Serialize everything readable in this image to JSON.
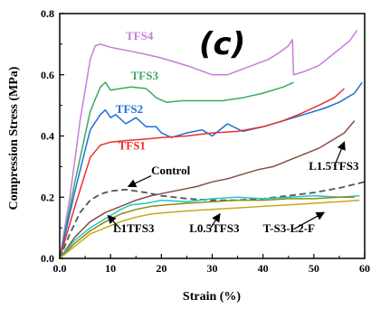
{
  "chart_data": {
    "type": "line",
    "panel_label": "(c)",
    "xlabel": "Strain (%)",
    "ylabel": "Compression Stress (MPa)",
    "xlim": [
      0,
      60
    ],
    "ylim": [
      0,
      0.8
    ],
    "x_ticks": [
      "0.0",
      "10",
      "20",
      "30",
      "40",
      "50",
      "60"
    ],
    "y_ticks": [
      "0.0",
      "0.2",
      "0.4",
      "0.6",
      "0.8"
    ],
    "grid": false,
    "legend": "none (series labelled directly on curves)",
    "series": [
      {
        "name": "TFS4",
        "color": "#c77dd8",
        "dash": false,
        "points": [
          [
            0,
            0
          ],
          [
            2,
            0.2
          ],
          [
            4,
            0.45
          ],
          [
            6,
            0.65
          ],
          [
            7,
            0.695
          ],
          [
            8,
            0.7
          ],
          [
            10,
            0.69
          ],
          [
            13,
            0.68
          ],
          [
            16,
            0.67
          ],
          [
            20,
            0.655
          ],
          [
            25,
            0.63
          ],
          [
            30,
            0.6
          ],
          [
            33,
            0.6
          ],
          [
            37,
            0.625
          ],
          [
            41,
            0.65
          ],
          [
            43,
            0.67
          ],
          [
            45,
            0.695
          ],
          [
            45.8,
            0.715
          ],
          [
            46,
            0.6
          ],
          [
            48,
            0.61
          ],
          [
            51,
            0.63
          ],
          [
            54,
            0.67
          ],
          [
            57,
            0.71
          ],
          [
            58.5,
            0.745
          ]
        ]
      },
      {
        "name": "TFS3",
        "color": "#3aaa5c",
        "dash": false,
        "points": [
          [
            0,
            0
          ],
          [
            3,
            0.25
          ],
          [
            6,
            0.48
          ],
          [
            8,
            0.56
          ],
          [
            9,
            0.575
          ],
          [
            10,
            0.55
          ],
          [
            12,
            0.555
          ],
          [
            14,
            0.56
          ],
          [
            17,
            0.555
          ],
          [
            19,
            0.525
          ],
          [
            21,
            0.51
          ],
          [
            24,
            0.515
          ],
          [
            28,
            0.515
          ],
          [
            32,
            0.515
          ],
          [
            36,
            0.525
          ],
          [
            40,
            0.54
          ],
          [
            44,
            0.56
          ],
          [
            46,
            0.575
          ]
        ]
      },
      {
        "name": "TFS2",
        "color": "#1f6fd4",
        "dash": false,
        "points": [
          [
            0,
            0
          ],
          [
            3,
            0.22
          ],
          [
            6,
            0.42
          ],
          [
            8,
            0.47
          ],
          [
            9,
            0.485
          ],
          [
            10,
            0.46
          ],
          [
            11,
            0.47
          ],
          [
            13,
            0.44
          ],
          [
            15,
            0.46
          ],
          [
            17,
            0.43
          ],
          [
            19,
            0.43
          ],
          [
            20,
            0.41
          ],
          [
            22,
            0.395
          ],
          [
            25,
            0.41
          ],
          [
            28,
            0.42
          ],
          [
            30,
            0.4
          ],
          [
            33,
            0.44
          ],
          [
            36,
            0.415
          ],
          [
            40,
            0.43
          ],
          [
            44,
            0.45
          ],
          [
            48,
            0.47
          ],
          [
            52,
            0.49
          ],
          [
            55,
            0.51
          ],
          [
            58,
            0.54
          ],
          [
            59.5,
            0.575
          ]
        ]
      },
      {
        "name": "TFS1",
        "color": "#e8302c",
        "dash": false,
        "points": [
          [
            0,
            0
          ],
          [
            3,
            0.17
          ],
          [
            6,
            0.33
          ],
          [
            8,
            0.37
          ],
          [
            10,
            0.38
          ],
          [
            13,
            0.385
          ],
          [
            17,
            0.39
          ],
          [
            20,
            0.395
          ],
          [
            25,
            0.4
          ],
          [
            30,
            0.41
          ],
          [
            35,
            0.415
          ],
          [
            40,
            0.43
          ],
          [
            44,
            0.45
          ],
          [
            47,
            0.47
          ],
          [
            51,
            0.5
          ],
          [
            54,
            0.525
          ],
          [
            56,
            0.555
          ]
        ]
      },
      {
        "name": "L1.5TFS3",
        "color": "#8b4a44",
        "dash": false,
        "points": [
          [
            0,
            0
          ],
          [
            3,
            0.07
          ],
          [
            6,
            0.12
          ],
          [
            9,
            0.15
          ],
          [
            12,
            0.17
          ],
          [
            15,
            0.19
          ],
          [
            18,
            0.205
          ],
          [
            21,
            0.215
          ],
          [
            24,
            0.225
          ],
          [
            27,
            0.235
          ],
          [
            30,
            0.25
          ],
          [
            33,
            0.26
          ],
          [
            36,
            0.275
          ],
          [
            39,
            0.29
          ],
          [
            42,
            0.3
          ],
          [
            45,
            0.32
          ],
          [
            48,
            0.34
          ],
          [
            51,
            0.36
          ],
          [
            54,
            0.39
          ],
          [
            56,
            0.41
          ],
          [
            58,
            0.45
          ]
        ]
      },
      {
        "name": "Control",
        "color": "#555555",
        "dash": true,
        "points": [
          [
            0,
            0
          ],
          [
            2,
            0.08
          ],
          [
            4,
            0.15
          ],
          [
            6,
            0.19
          ],
          [
            8,
            0.21
          ],
          [
            10,
            0.22
          ],
          [
            13,
            0.225
          ],
          [
            17,
            0.215
          ],
          [
            20,
            0.205
          ],
          [
            25,
            0.195
          ],
          [
            30,
            0.19
          ],
          [
            35,
            0.19
          ],
          [
            40,
            0.195
          ],
          [
            45,
            0.205
          ],
          [
            50,
            0.215
          ],
          [
            55,
            0.23
          ],
          [
            60,
            0.25
          ]
        ]
      },
      {
        "name": "L1TFS3",
        "color": "#1ec8c8",
        "dash": false,
        "points": [
          [
            0,
            0
          ],
          [
            3,
            0.06
          ],
          [
            6,
            0.1
          ],
          [
            9,
            0.13
          ],
          [
            12,
            0.16
          ],
          [
            14,
            0.175
          ],
          [
            17,
            0.18
          ],
          [
            20,
            0.19
          ],
          [
            25,
            0.185
          ],
          [
            30,
            0.195
          ],
          [
            35,
            0.2
          ],
          [
            40,
            0.195
          ],
          [
            45,
            0.2
          ],
          [
            50,
            0.205
          ],
          [
            55,
            0.2
          ],
          [
            59,
            0.205
          ]
        ]
      },
      {
        "name": "L0.5TFS3",
        "color": "#8a8a12",
        "dash": false,
        "points": [
          [
            0,
            0
          ],
          [
            3,
            0.05
          ],
          [
            6,
            0.09
          ],
          [
            9,
            0.12
          ],
          [
            12,
            0.145
          ],
          [
            15,
            0.16
          ],
          [
            18,
            0.17
          ],
          [
            21,
            0.175
          ],
          [
            25,
            0.18
          ],
          [
            30,
            0.185
          ],
          [
            35,
            0.19
          ],
          [
            40,
            0.19
          ],
          [
            45,
            0.195
          ],
          [
            50,
            0.195
          ],
          [
            55,
            0.2
          ],
          [
            58,
            0.2
          ]
        ]
      },
      {
        "name": "T-S3-L2-F",
        "color": "#c8a81a",
        "dash": false,
        "points": [
          [
            0,
            0
          ],
          [
            3,
            0.04
          ],
          [
            6,
            0.08
          ],
          [
            9,
            0.1
          ],
          [
            12,
            0.12
          ],
          [
            15,
            0.135
          ],
          [
            18,
            0.145
          ],
          [
            21,
            0.15
          ],
          [
            25,
            0.155
          ],
          [
            30,
            0.16
          ],
          [
            35,
            0.165
          ],
          [
            40,
            0.17
          ],
          [
            45,
            0.175
          ],
          [
            50,
            0.18
          ],
          [
            55,
            0.185
          ],
          [
            59,
            0.19
          ]
        ]
      }
    ],
    "labels": [
      {
        "text": "TFS4",
        "color": "#c77dd8",
        "x": 13,
        "y": 0.715
      },
      {
        "text": "TFS3",
        "color": "#3aaa5c",
        "x": 14,
        "y": 0.585
      },
      {
        "text": "TFS2",
        "color": "#1f6fd4",
        "x": 11,
        "y": 0.475
      },
      {
        "text": "TFS1",
        "color": "#e8302c",
        "x": 11.5,
        "y": 0.355
      },
      {
        "text": "Control",
        "color": "#000000",
        "x": 18,
        "y": 0.275
      },
      {
        "text": "L1.5TFS3",
        "color": "#000000",
        "x": 49,
        "y": 0.29
      },
      {
        "text": "L1TFS3",
        "color": "#000000",
        "x": 10.5,
        "y": 0.085
      },
      {
        "text": "L0.5TFS3",
        "color": "#000000",
        "x": 25.5,
        "y": 0.085
      },
      {
        "text": "T-S3-L2-F",
        "color": "#000000",
        "x": 40,
        "y": 0.085
      }
    ],
    "arrows": [
      {
        "from": [
          18,
          0.27
        ],
        "to": [
          13.5,
          0.235
        ]
      },
      {
        "from": [
          54,
          0.3
        ],
        "to": [
          56,
          0.38
        ]
      },
      {
        "from": [
          12,
          0.095
        ],
        "to": [
          9.5,
          0.14
        ]
      },
      {
        "from": [
          29.5,
          0.095
        ],
        "to": [
          31.5,
          0.145
        ]
      },
      {
        "from": [
          46,
          0.095
        ],
        "to": [
          52,
          0.15
        ]
      }
    ]
  }
}
